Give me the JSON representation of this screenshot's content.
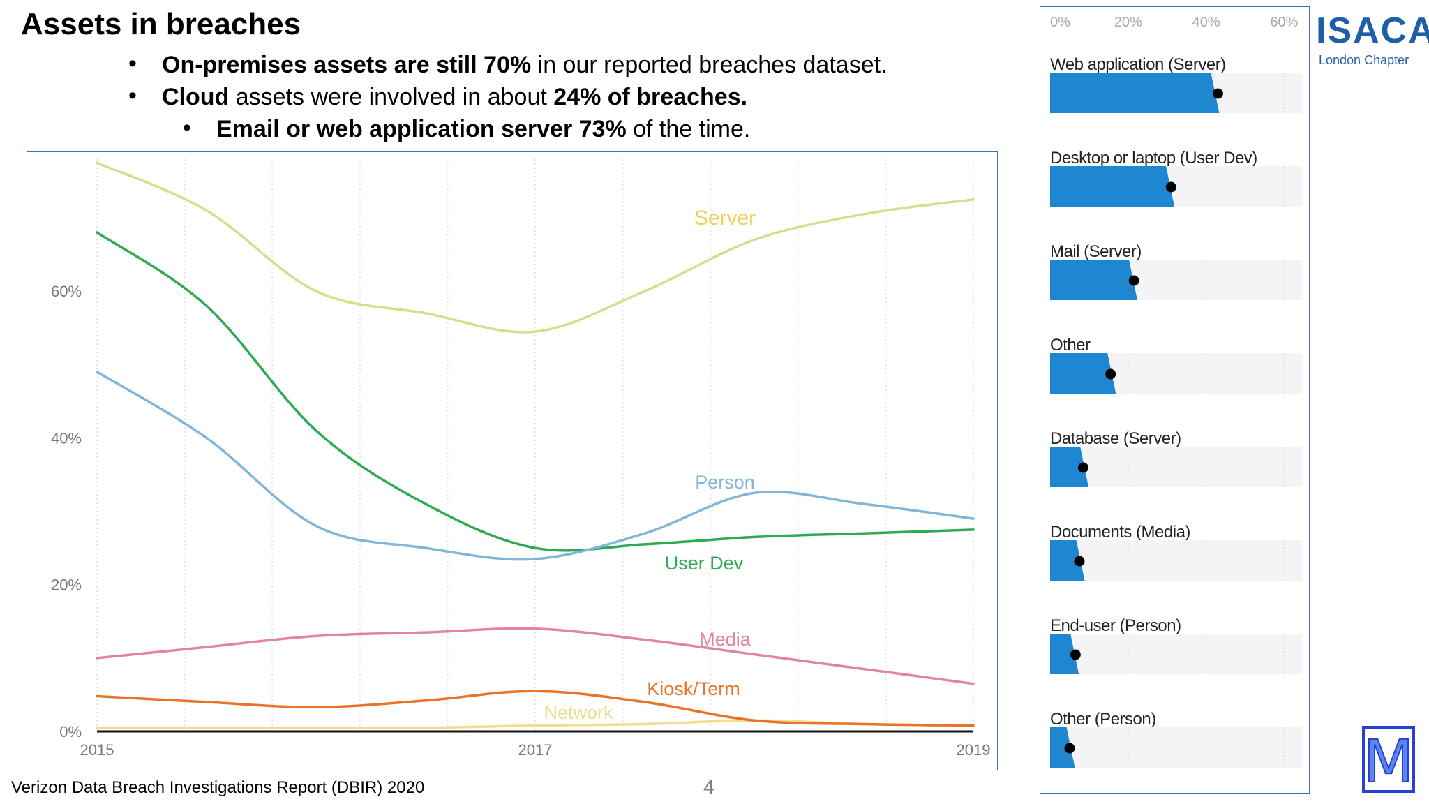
{
  "slide": {
    "title": "Assets in breaches",
    "bullets": [
      {
        "bold": "On-premises assets are still 70%",
        "text": " in our reported breaches dataset."
      },
      {
        "bold": "Cloud",
        "text": " assets were involved in about ",
        "bold2": "24% of breaches."
      },
      {
        "bold": "Email or web application server 73%",
        "text": " of the time."
      }
    ],
    "footer": "Verizon Data Breach Investigations Report (DBIR) 2020",
    "page_number": "4"
  },
  "logo": {
    "name": "ISACA",
    "chapter": "London Chapter",
    "m_letter": "M"
  },
  "colors": {
    "server": "#d8dc8c",
    "person": "#7fb6d9",
    "user_dev": "#2eaa52",
    "media": "#e2859b",
    "kiosk": "#e8742a",
    "network": "#f2dc8e",
    "bar": "#1f86d1",
    "frame": "#3a6fb0",
    "isaca_blue": "#1f5fa8"
  },
  "chart_data": [
    {
      "type": "line",
      "title": "",
      "xlabel": "",
      "ylabel": "",
      "x": [
        2015,
        2015.5,
        2016,
        2016.5,
        2017,
        2017.5,
        2018,
        2018.5,
        2019
      ],
      "xticks": [
        "2015",
        "2017",
        "2019"
      ],
      "xlim": [
        2015,
        2019
      ],
      "yticks": [
        "0%",
        "20%",
        "40%",
        "60%"
      ],
      "ylim": [
        0,
        78
      ],
      "grid": "vertical",
      "series": [
        {
          "name": "Server",
          "color": "#d8dc8c",
          "label_color": "#f1cf5c",
          "values": [
            77.5,
            71,
            60,
            57,
            54.5,
            60,
            67,
            70.5,
            72.5
          ]
        },
        {
          "name": "Person",
          "color": "#7fb6d9",
          "values": [
            49,
            40,
            28,
            25,
            23.5,
            27,
            32.5,
            31,
            29
          ]
        },
        {
          "name": "User Dev",
          "color": "#2eaa52",
          "values": [
            68,
            58,
            41,
            31,
            25,
            25.5,
            26.5,
            27,
            27.5
          ]
        },
        {
          "name": "Media",
          "color": "#e2859b",
          "values": [
            10,
            11.5,
            13,
            13.5,
            14,
            12.5,
            10.5,
            8.5,
            6.5
          ]
        },
        {
          "name": "Kiosk/Term",
          "color": "#e8742a",
          "values": [
            4.8,
            4,
            3.3,
            4.2,
            5.5,
            4,
            1.5,
            1,
            0.8
          ]
        },
        {
          "name": "Network",
          "color": "#f2dc8e",
          "values": [
            0.5,
            0.5,
            0.5,
            0.5,
            0.8,
            1,
            1.5,
            1,
            0.8
          ]
        }
      ]
    },
    {
      "type": "bar",
      "orientation": "horizontal",
      "title": "",
      "xlabel": "",
      "ylabel": "",
      "xticks": [
        "0%",
        "20%",
        "40%",
        "60%"
      ],
      "xlim": [
        0,
        66
      ],
      "grid": "vertical",
      "categories": [
        "Web application (Server)",
        "Desktop or laptop (User Dev)",
        "Mail (Server)",
        "Other",
        "Database (Server)",
        "Documents (Media)",
        "End-user (Person)",
        "Other (Person)"
      ],
      "values": [
        43,
        31.5,
        22,
        16.5,
        9.5,
        8.5,
        7,
        6
      ],
      "dot_values": [
        43,
        31,
        21.5,
        15.5,
        8.5,
        7.5,
        6.5,
        5
      ]
    }
  ]
}
